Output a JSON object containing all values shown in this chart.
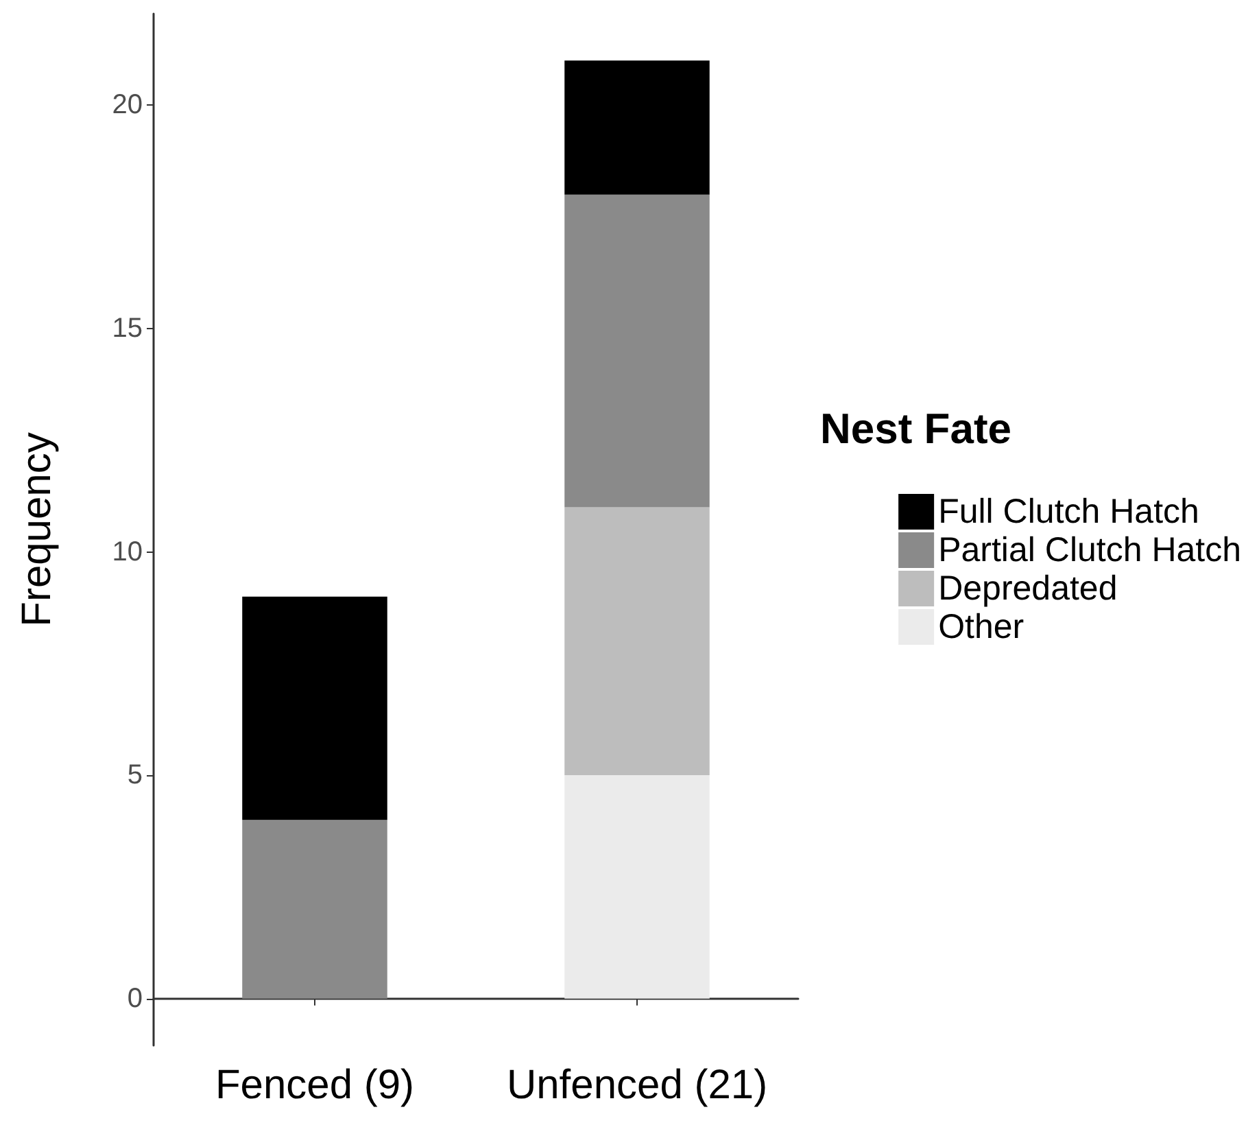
{
  "chart_data": {
    "type": "bar",
    "stacked": true,
    "ylabel": "Frequency",
    "legend_title": "Nest Fate",
    "categories": [
      "Fenced (9)",
      "Unfenced (21)"
    ],
    "series": [
      {
        "name": "Other",
        "color": "#ebebeb",
        "values": [
          0,
          5
        ]
      },
      {
        "name": "Depredated",
        "color": "#bdbdbd",
        "values": [
          0,
          6
        ]
      },
      {
        "name": "Partial Clutch Hatch",
        "color": "#8a8a8a",
        "values": [
          4,
          7
        ]
      },
      {
        "name": "Full Clutch Hatch",
        "color": "#000000",
        "values": [
          5,
          3
        ]
      }
    ],
    "ylim": [
      -1.05,
      22.05
    ],
    "yticks": [
      0,
      5,
      10,
      15,
      20
    ],
    "grid": false,
    "legend": "right"
  }
}
